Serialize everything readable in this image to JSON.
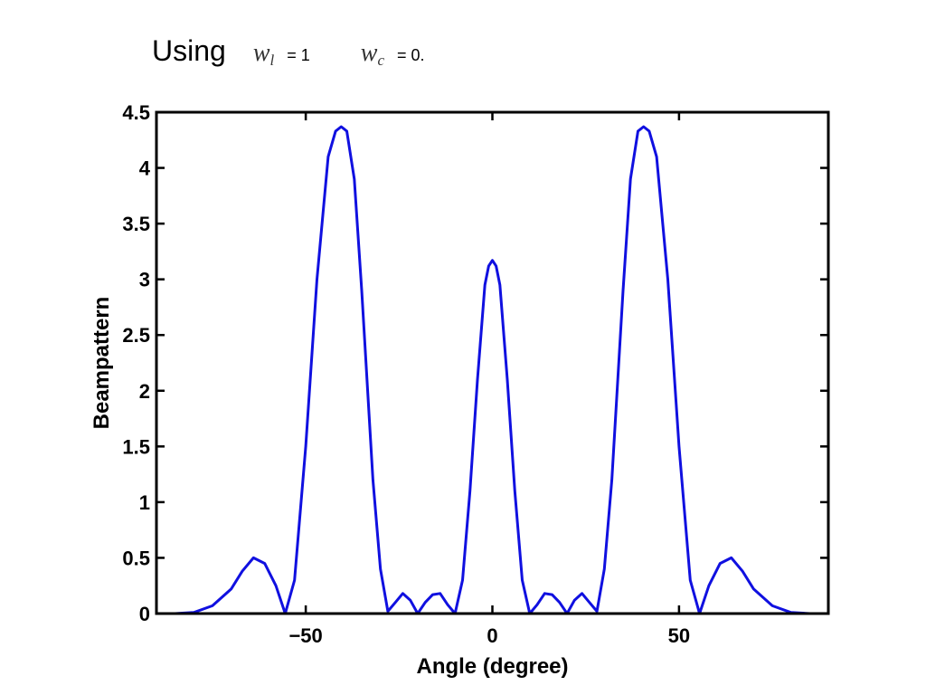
{
  "caption": {
    "prefix": "Using",
    "var1": {
      "symbol": "w",
      "subscript": "l",
      "value": "= 1"
    },
    "var2": {
      "symbol": "w",
      "subscript": "c",
      "value": "= 0."
    }
  },
  "chart_data": {
    "type": "line",
    "title": "",
    "xlabel": "Angle (degree)",
    "ylabel": "Beampattern",
    "xlim": [
      -90,
      90
    ],
    "ylim": [
      0,
      4.5
    ],
    "xticks": [
      -50,
      0,
      50
    ],
    "xtick_labels": [
      "−50",
      "0",
      "50"
    ],
    "yticks": [
      0,
      0.5,
      1,
      1.5,
      2,
      2.5,
      3,
      3.5,
      4,
      4.5
    ],
    "ytick_labels": [
      "0",
      "0.5",
      "1",
      "1.5",
      "2",
      "2.5",
      "3",
      "3.5",
      "4",
      "4.5"
    ],
    "grid": false,
    "legend": false,
    "line_color": "#1010e0",
    "series": [
      {
        "x": [
          -90,
          -85,
          -80,
          -75,
          -70,
          -67,
          -64,
          -61,
          -58,
          -55.5,
          -53,
          -50,
          -47,
          -44,
          -42,
          -40.5,
          -39,
          -37,
          -35,
          -32,
          -30,
          -28,
          -26,
          -24,
          -22,
          -20,
          -18,
          -16,
          -14,
          -12,
          -10,
          -8,
          -6,
          -4,
          -2,
          -1,
          0,
          1,
          2,
          4,
          6,
          8,
          10,
          12,
          14,
          16,
          18,
          20,
          22,
          24,
          26,
          28,
          30,
          32,
          35,
          37,
          39,
          40.5,
          42,
          44,
          47,
          50,
          53,
          55.5,
          58,
          61,
          64,
          67,
          70,
          75,
          80,
          85,
          90
        ],
        "y": [
          0,
          0,
          0.01,
          0.07,
          0.22,
          0.38,
          0.5,
          0.45,
          0.25,
          0,
          0.3,
          1.5,
          3.0,
          4.1,
          4.33,
          4.37,
          4.33,
          3.9,
          2.9,
          1.2,
          0.4,
          0.02,
          0.1,
          0.18,
          0.12,
          0,
          0.1,
          0.17,
          0.18,
          0.08,
          0,
          0.3,
          1.1,
          2.1,
          2.95,
          3.12,
          3.17,
          3.12,
          2.95,
          2.1,
          1.1,
          0.3,
          0,
          0.08,
          0.18,
          0.17,
          0.1,
          0,
          0.12,
          0.18,
          0.1,
          0.02,
          0.4,
          1.2,
          2.9,
          3.9,
          4.33,
          4.37,
          4.33,
          4.1,
          3.0,
          1.5,
          0.3,
          0,
          0.25,
          0.45,
          0.5,
          0.38,
          0.22,
          0.07,
          0.01,
          0,
          0
        ]
      }
    ]
  }
}
